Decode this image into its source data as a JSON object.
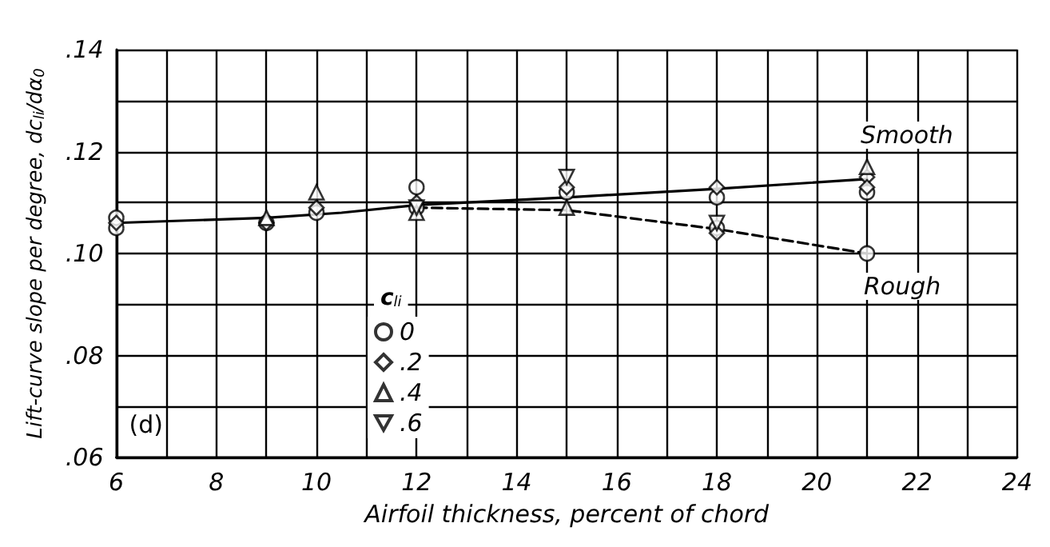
{
  "chart_data": {
    "type": "scatter",
    "xlabel": "Airfoil thickness, percent of chord",
    "ylabel": "Lift-curve slope per degree, dc$_{li}$/dα$_{0}$",
    "legend_title": "c$_{li}$",
    "xlim": [
      6,
      24
    ],
    "xticks": [
      6,
      {
        "value": 7,
        "label": null
      },
      8,
      {
        "value": 9,
        "label": null
      },
      10,
      {
        "value": 11,
        "label": null
      },
      12,
      {
        "value": 13,
        "label": null
      },
      14,
      {
        "value": 15,
        "label": null
      },
      16,
      {
        "value": 17,
        "label": null
      },
      18,
      {
        "value": 19,
        "label": null
      },
      20,
      {
        "value": 21,
        "label": null
      },
      22,
      {
        "value": 23,
        "label": null
      },
      24
    ],
    "ylim": [
      0.06,
      0.14
    ],
    "yticks": [
      {
        "value": 0.06,
        "label": ".06"
      },
      {
        "value": 0.07,
        "label": null
      },
      {
        "value": 0.08,
        "label": ".08"
      },
      {
        "value": 0.09,
        "label": null
      },
      {
        "value": 0.1,
        "label": ".10"
      },
      {
        "value": 0.11,
        "label": null
      },
      {
        "value": 0.12,
        "label": ".12"
      },
      {
        "value": 0.13,
        "label": null
      },
      {
        "value": 0.14,
        "label": ".14"
      }
    ],
    "grid": true,
    "legend": "bottom",
    "series": [
      {
        "name": "0",
        "color": "#000000",
        "marker": "circle",
        "x": [
          6,
          6,
          9,
          10,
          12,
          12,
          15,
          18,
          18,
          21,
          21
        ],
        "values": [
          0.105,
          0.107,
          0.106,
          0.108,
          0.113,
          0.109,
          0.112,
          0.111,
          0.105,
          0.112,
          0.1
        ]
      },
      {
        "name": ".2",
        "color": "#000000",
        "marker": "diamond",
        "x": [
          6,
          9,
          10,
          12,
          15,
          18,
          18,
          21,
          21
        ],
        "values": [
          0.106,
          0.106,
          0.109,
          0.11,
          0.113,
          0.113,
          0.104,
          0.115,
          0.113
        ]
      },
      {
        "name": ".4",
        "color": "#000000",
        "marker": "triangle",
        "x": [
          9,
          10,
          12,
          15,
          21
        ],
        "values": [
          0.107,
          0.112,
          0.108,
          0.109,
          0.117
        ]
      },
      {
        "name": ".6",
        "color": "#000000",
        "marker": "triangle-down",
        "x": [
          12,
          15,
          18
        ],
        "values": [
          0.109,
          0.115,
          0.106
        ]
      },
      {
        "type": "line",
        "color": "#000000",
        "marker": "none",
        "line_style": "solid",
        "x": [
          6,
          9,
          10.5,
          12,
          15,
          18,
          21
        ],
        "values": [
          0.106,
          0.107,
          0.108,
          0.1095,
          0.111,
          0.1127,
          0.1146
        ]
      },
      {
        "type": "line",
        "color": "#000000",
        "marker": "none",
        "line_style": "dashed",
        "x": [
          12,
          15,
          18,
          21
        ],
        "values": [
          0.109,
          0.1085,
          0.1048,
          0.1
        ]
      }
    ],
    "annotations": [
      {
        "text": "Smooth",
        "x": 21,
        "y": 0.1146
      },
      {
        "text": "Rough",
        "x": 21,
        "y": 0.1
      },
      "(d)"
    ]
  }
}
